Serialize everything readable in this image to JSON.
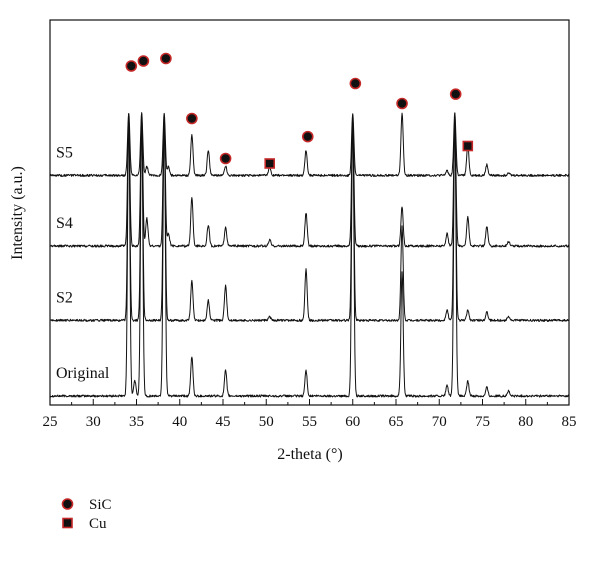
{
  "chart_data": {
    "type": "line",
    "xlabel": "2-theta (°)",
    "ylabel": "Intensity (a.u.)",
    "xlim": [
      25,
      85
    ],
    "x_ticks": [
      "25",
      "30",
      "35",
      "40",
      "45",
      "50",
      "55",
      "60",
      "65",
      "70",
      "75",
      "80",
      "85"
    ],
    "y_ticks_shown": false,
    "grid": false,
    "legend_placement": "below-left",
    "series": [
      {
        "name": "Original",
        "baseline": 0.0,
        "peaks": [
          {
            "x": 34.1,
            "h": 4.5
          },
          {
            "x": 34.8,
            "h": 0.25
          },
          {
            "x": 35.6,
            "h": 4.5
          },
          {
            "x": 38.2,
            "h": 4.5
          },
          {
            "x": 41.4,
            "h": 0.63
          },
          {
            "x": 45.3,
            "h": 0.41
          },
          {
            "x": 54.6,
            "h": 0.41
          },
          {
            "x": 60.0,
            "h": 4.5
          },
          {
            "x": 65.7,
            "h": 2.0
          },
          {
            "x": 70.9,
            "h": 0.17
          },
          {
            "x": 71.8,
            "h": 4.5
          },
          {
            "x": 73.3,
            "h": 0.24
          },
          {
            "x": 75.5,
            "h": 0.14
          },
          {
            "x": 78.0,
            "h": 0.08
          }
        ]
      },
      {
        "name": "S2",
        "baseline": 1.21,
        "peaks": [
          {
            "x": 34.1,
            "h": 3.3
          },
          {
            "x": 35.6,
            "h": 3.3
          },
          {
            "x": 38.2,
            "h": 3.3
          },
          {
            "x": 41.4,
            "h": 0.63
          },
          {
            "x": 43.3,
            "h": 0.32
          },
          {
            "x": 45.3,
            "h": 0.56
          },
          {
            "x": 50.4,
            "h": 0.06
          },
          {
            "x": 54.6,
            "h": 0.82
          },
          {
            "x": 60.0,
            "h": 3.3
          },
          {
            "x": 65.7,
            "h": 1.5
          },
          {
            "x": 70.9,
            "h": 0.17
          },
          {
            "x": 71.8,
            "h": 3.3
          },
          {
            "x": 73.3,
            "h": 0.17
          },
          {
            "x": 75.5,
            "h": 0.14
          },
          {
            "x": 78.0,
            "h": 0.07
          }
        ]
      },
      {
        "name": "S4",
        "baseline": 2.4,
        "peaks": [
          {
            "x": 34.1,
            "h": 2.1
          },
          {
            "x": 35.6,
            "h": 2.1
          },
          {
            "x": 36.2,
            "h": 0.44
          },
          {
            "x": 38.2,
            "h": 2.1
          },
          {
            "x": 38.7,
            "h": 0.2
          },
          {
            "x": 41.4,
            "h": 0.77
          },
          {
            "x": 43.3,
            "h": 0.34
          },
          {
            "x": 45.3,
            "h": 0.31
          },
          {
            "x": 50.4,
            "h": 0.1
          },
          {
            "x": 54.6,
            "h": 0.53
          },
          {
            "x": 60.0,
            "h": 2.1
          },
          {
            "x": 65.7,
            "h": 0.63
          },
          {
            "x": 70.9,
            "h": 0.2
          },
          {
            "x": 71.8,
            "h": 2.1
          },
          {
            "x": 73.3,
            "h": 0.48
          },
          {
            "x": 75.5,
            "h": 0.31
          },
          {
            "x": 78.0,
            "h": 0.07
          }
        ]
      },
      {
        "name": "S5",
        "baseline": 3.53,
        "peaks": [
          {
            "x": 34.1,
            "h": 1.0
          },
          {
            "x": 35.6,
            "h": 1.0
          },
          {
            "x": 36.2,
            "h": 0.14
          },
          {
            "x": 38.2,
            "h": 1.0
          },
          {
            "x": 38.7,
            "h": 0.14
          },
          {
            "x": 41.4,
            "h": 0.65
          },
          {
            "x": 43.3,
            "h": 0.41
          },
          {
            "x": 45.3,
            "h": 0.15
          },
          {
            "x": 50.4,
            "h": 0.14
          },
          {
            "x": 54.6,
            "h": 0.41
          },
          {
            "x": 60.0,
            "h": 1.0
          },
          {
            "x": 65.7,
            "h": 1.0
          },
          {
            "x": 70.9,
            "h": 0.08
          },
          {
            "x": 71.8,
            "h": 1.0
          },
          {
            "x": 73.3,
            "h": 0.48
          },
          {
            "x": 75.5,
            "h": 0.17
          },
          {
            "x": 78.0,
            "h": 0.05
          }
        ]
      }
    ],
    "markers": [
      {
        "type": "SiC",
        "x": 34.4,
        "y": 5.28
      },
      {
        "type": "SiC",
        "x": 35.8,
        "y": 5.36
      },
      {
        "type": "SiC",
        "x": 38.4,
        "y": 5.4
      },
      {
        "type": "SiC",
        "x": 41.4,
        "y": 4.44
      },
      {
        "type": "SiC",
        "x": 45.3,
        "y": 3.8
      },
      {
        "type": "Cu",
        "x": 50.4,
        "y": 3.72
      },
      {
        "type": "SiC",
        "x": 54.8,
        "y": 4.15
      },
      {
        "type": "SiC",
        "x": 60.3,
        "y": 5.0
      },
      {
        "type": "SiC",
        "x": 65.7,
        "y": 4.68
      },
      {
        "type": "SiC",
        "x": 71.9,
        "y": 4.83
      },
      {
        "type": "Cu",
        "x": 73.3,
        "y": 4.0
      }
    ],
    "legend": [
      {
        "type": "SiC",
        "label": "SiC",
        "shape": "circle"
      },
      {
        "type": "Cu",
        "label": "Cu",
        "shape": "square"
      }
    ],
    "colors": {
      "line": "#111111",
      "marker_fill": "#111111",
      "marker_outline": "#c62828"
    }
  }
}
